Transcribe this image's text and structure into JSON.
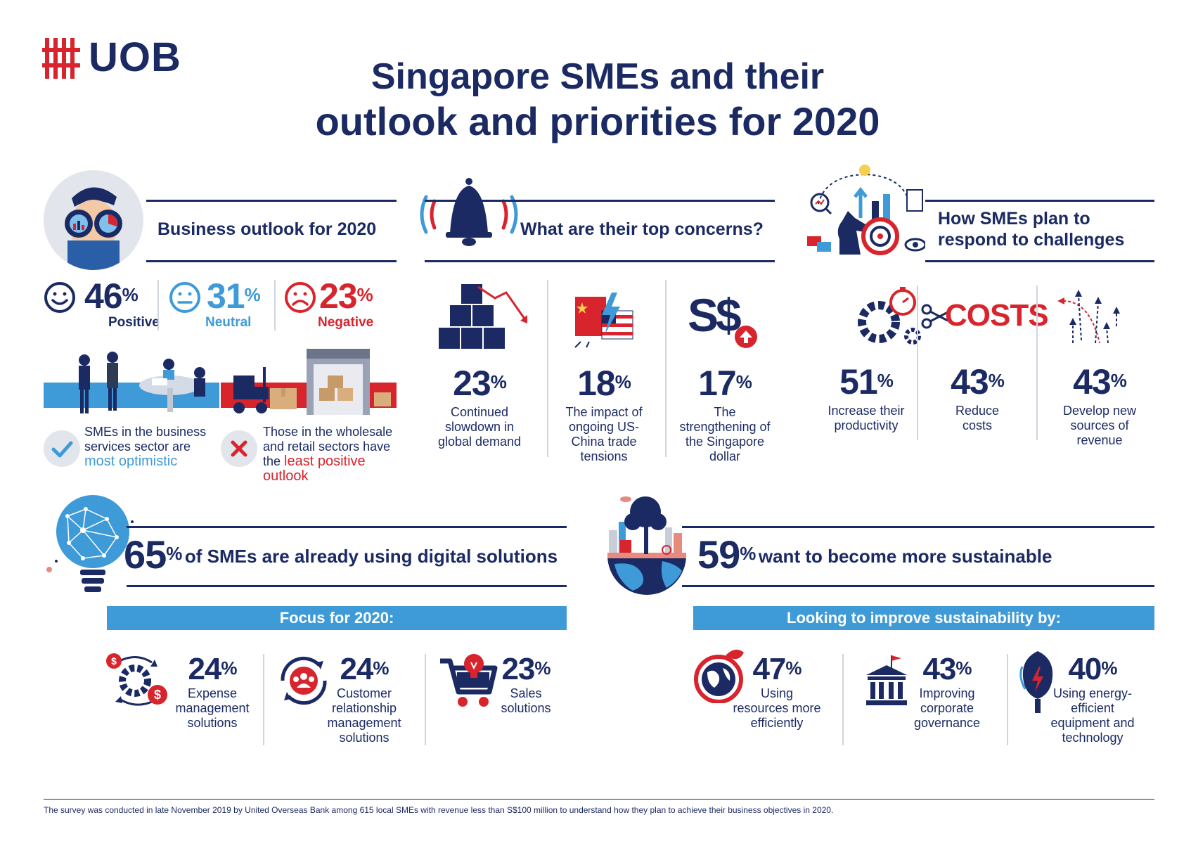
{
  "logo": {
    "text": "UOB"
  },
  "title": {
    "line1": "Singapore SMEs and their",
    "line2": "outlook and priorities for 2020"
  },
  "outlook": {
    "heading": "Business outlook for 2020",
    "positive": {
      "value": "46",
      "unit": "%",
      "label": "Positive"
    },
    "neutral": {
      "value": "31",
      "unit": "%",
      "label": "Neutral"
    },
    "negative": {
      "value": "23",
      "unit": "%",
      "label": "Negative"
    },
    "optimistic_pre": "SMEs in the business services sector are",
    "optimistic_em": "most optimistic",
    "least_pre": "Those in the wholesale and retail sectors have the",
    "least_em": "least positive outlook"
  },
  "concerns": {
    "heading": "What are their top concerns?",
    "items": [
      {
        "value": "23",
        "unit": "%",
        "label": "Continued slowdown in global demand"
      },
      {
        "value": "18",
        "unit": "%",
        "label": "The impact of ongoing US-China trade tensions"
      },
      {
        "value": "17",
        "unit": "%",
        "label": "The strengthening of the Singapore dollar"
      }
    ],
    "currency_icon_text": "S$"
  },
  "responses": {
    "heading_line1": "How SMEs plan to",
    "heading_line2": "respond to challenges",
    "costs_word": "COSTS",
    "items": [
      {
        "value": "51",
        "unit": "%",
        "label": "Increase their productivity"
      },
      {
        "value": "43",
        "unit": "%",
        "label": "Reduce costs"
      },
      {
        "value": "43",
        "unit": "%",
        "label": "Develop new sources of revenue"
      }
    ]
  },
  "digital": {
    "value": "65",
    "unit": "%",
    "text": "of SMEs are already using digital solutions",
    "bar": "Focus for 2020:",
    "items": [
      {
        "value": "24",
        "unit": "%",
        "label": "Expense management solutions"
      },
      {
        "value": "24",
        "unit": "%",
        "label": "Customer relationship management solutions"
      },
      {
        "value": "23",
        "unit": "%",
        "label": "Sales solutions"
      }
    ]
  },
  "sustain": {
    "value": "59",
    "unit": "%",
    "text": "want to become more sustainable",
    "bar": "Looking to improve sustainability by:",
    "items": [
      {
        "value": "47",
        "unit": "%",
        "label": "Using resources more efficiently"
      },
      {
        "value": "43",
        "unit": "%",
        "label": "Improving corporate governance"
      },
      {
        "value": "40",
        "unit": "%",
        "label": "Using energy-efficient equipment and technology"
      }
    ]
  },
  "footnote": "The survey was conducted in late November 2019 by United Overseas Bank among 615 local SMEs with revenue less than S$100 million to understand how they plan to achieve their business objectives in 2020.",
  "colors": {
    "navy": "#1b2a63",
    "red": "#d8242c",
    "blue": "#3f9ad8",
    "grey": "#e6e8ee"
  }
}
